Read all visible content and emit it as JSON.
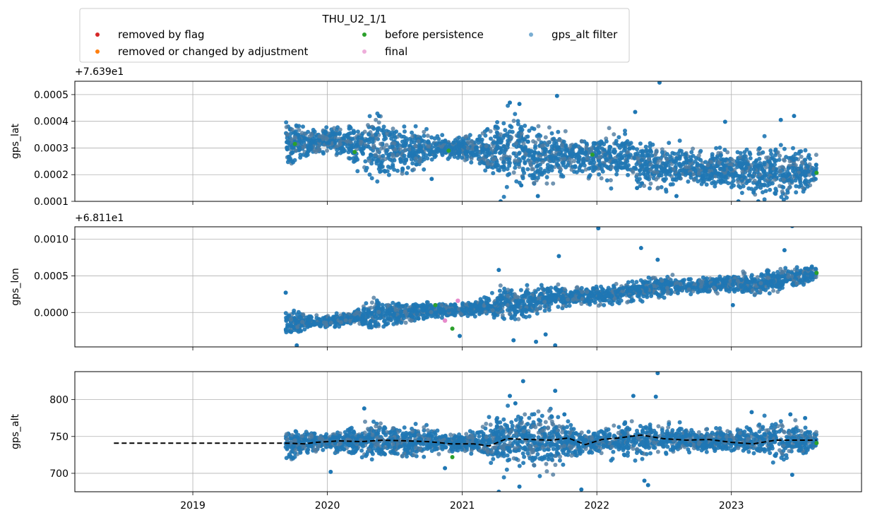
{
  "legend": {
    "title": "THU_U2_1/1",
    "entries": [
      {
        "label": "removed by flag",
        "color": "#d62728"
      },
      {
        "label": "removed or changed by adjustment",
        "color": "#ff7f0e"
      },
      {
        "label": "before persistence",
        "color": "#2ca02c"
      },
      {
        "label": "final",
        "color": "#e377c2"
      },
      {
        "label": "gps_alt filter",
        "color": "#1f77b4"
      }
    ]
  },
  "chart_data": [
    {
      "type": "scatter",
      "ylabel": "gps_lat",
      "offset_text": "+7.639e1",
      "xlim": [
        "2018-02-15",
        "2023-12-20"
      ],
      "ylim": [
        0.0001,
        0.00055
      ],
      "yticks": [
        0.0001,
        0.0002,
        0.0003,
        0.0004,
        0.0005
      ],
      "ytick_labels": [
        "0.0001",
        "0.0002",
        "0.0003",
        "0.0004",
        "0.0005"
      ],
      "grid": true,
      "trend": [
        [
          "2019-09-10",
          0.00033
        ],
        [
          "2019-11-15",
          0.00032
        ],
        [
          "2020-01-15",
          0.00033
        ],
        [
          "2020-03-15",
          0.00031
        ],
        [
          "2020-05-15",
          0.00031
        ],
        [
          "2020-07-15",
          0.00029
        ],
        [
          "2020-09-15",
          0.00029
        ],
        [
          "2020-11-15",
          0.0003
        ],
        [
          "2021-01-15",
          0.0003
        ],
        [
          "2021-03-15",
          0.00029
        ],
        [
          "2021-05-15",
          0.0003
        ],
        [
          "2021-07-15",
          0.00027
        ],
        [
          "2021-09-15",
          0.00028
        ],
        [
          "2021-11-15",
          0.00027
        ],
        [
          "2022-01-15",
          0.00026
        ],
        [
          "2022-03-15",
          0.00027
        ],
        [
          "2022-05-15",
          0.00024
        ],
        [
          "2022-07-15",
          0.00023
        ],
        [
          "2022-09-15",
          0.00023
        ],
        [
          "2022-11-15",
          0.00022
        ],
        [
          "2023-01-15",
          0.00022
        ],
        [
          "2023-03-15",
          0.00021
        ],
        [
          "2023-05-15",
          0.00021
        ],
        [
          "2023-07-15",
          0.00021
        ],
        [
          "2023-08-20",
          0.00021
        ]
      ],
      "spread": [
        [
          "2019-09-10",
          4e-05
        ],
        [
          "2019-12-01",
          2e-05
        ],
        [
          "2020-03-01",
          3e-05
        ],
        [
          "2020-05-15",
          6e-05
        ],
        [
          "2020-08-01",
          4e-05
        ],
        [
          "2020-11-01",
          2e-05
        ],
        [
          "2021-02-01",
          2e-05
        ],
        [
          "2021-05-01",
          6e-05
        ],
        [
          "2021-08-01",
          5e-05
        ],
        [
          "2021-11-01",
          3e-05
        ],
        [
          "2022-03-01",
          4e-05
        ],
        [
          "2022-06-01",
          4e-05
        ],
        [
          "2022-09-01",
          3e-05
        ],
        [
          "2023-01-01",
          3e-05
        ],
        [
          "2023-05-01",
          5e-05
        ],
        [
          "2023-08-20",
          3e-05
        ]
      ],
      "outliers": [
        [
          "2022-06-20",
          0.000545
        ],
        [
          "2021-09-15",
          0.000495
        ],
        [
          "2021-05-10",
          0.00047
        ],
        [
          "2021-06-05",
          0.000465
        ],
        [
          "2022-04-15",
          0.000435
        ],
        [
          "2023-06-20",
          0.00042
        ],
        [
          "2020-05-20",
          0.00042
        ],
        [
          "2023-05-15",
          0.000405
        ],
        [
          "2022-12-15",
          0.000398
        ],
        [
          "2021-04-01",
          0.00038
        ],
        [
          "2020-10-10",
          0.000184
        ],
        [
          "2021-06-10",
          0.00016
        ],
        [
          "2022-04-20",
          0.00015
        ],
        [
          "2021-07-25",
          0.00012
        ],
        [
          "2021-04-15",
          0.0001
        ],
        [
          "2022-08-05",
          0.00012
        ],
        [
          "2023-01-20",
          0.0001
        ],
        [
          "2023-03-15",
          0.0001
        ]
      ],
      "green_points": [
        [
          "2019-10-05",
          0.000315
        ],
        [
          "2020-03-15",
          0.000285
        ],
        [
          "2020-11-25",
          0.00029
        ],
        [
          "2021-12-20",
          0.000275
        ],
        [
          "2023-08-20",
          0.000207
        ]
      ],
      "pink_points": []
    },
    {
      "type": "scatter",
      "ylabel": "gps_lon",
      "offset_text": "+6.811e1",
      "xlim": [
        "2018-02-15",
        "2023-12-20"
      ],
      "ylim": [
        -0.00047,
        0.00117
      ],
      "yticks": [
        0.0,
        0.0005,
        0.001
      ],
      "ytick_labels": [
        "0.0000",
        "0.0005",
        "0.0010"
      ],
      "grid": true,
      "trend": [
        [
          "2019-09-10",
          -0.00015
        ],
        [
          "2019-11-15",
          -0.00013
        ],
        [
          "2020-01-15",
          -0.00012
        ],
        [
          "2020-03-15",
          -7e-05
        ],
        [
          "2020-05-15",
          -3e-05
        ],
        [
          "2020-07-15",
          0.0
        ],
        [
          "2020-09-15",
          2e-05
        ],
        [
          "2020-11-15",
          3e-05
        ],
        [
          "2021-01-15",
          5e-05
        ],
        [
          "2021-03-15",
          0.0001
        ],
        [
          "2021-05-15",
          0.00013
        ],
        [
          "2021-07-15",
          0.00016
        ],
        [
          "2021-09-15",
          0.0002
        ],
        [
          "2021-11-15",
          0.00022
        ],
        [
          "2022-01-15",
          0.00024
        ],
        [
          "2022-03-15",
          0.00027
        ],
        [
          "2022-05-15",
          0.00033
        ],
        [
          "2022-07-15",
          0.00035
        ],
        [
          "2022-09-15",
          0.00037
        ],
        [
          "2022-11-15",
          0.00038
        ],
        [
          "2023-01-15",
          0.0004
        ],
        [
          "2023-03-15",
          0.0004
        ],
        [
          "2023-05-15",
          0.00046
        ],
        [
          "2023-07-15",
          0.0005
        ],
        [
          "2023-08-20",
          0.00054
        ]
      ],
      "spread": [
        [
          "2019-09-10",
          8e-05
        ],
        [
          "2019-12-01",
          3e-05
        ],
        [
          "2020-03-01",
          4e-05
        ],
        [
          "2020-05-15",
          0.0001
        ],
        [
          "2020-08-01",
          7e-05
        ],
        [
          "2020-11-01",
          4e-05
        ],
        [
          "2021-02-01",
          4e-05
        ],
        [
          "2021-05-01",
          0.0001
        ],
        [
          "2021-08-01",
          9e-05
        ],
        [
          "2021-11-01",
          5e-05
        ],
        [
          "2022-03-01",
          6e-05
        ],
        [
          "2022-06-01",
          7e-05
        ],
        [
          "2022-09-01",
          5e-05
        ],
        [
          "2023-01-01",
          5e-05
        ],
        [
          "2023-05-01",
          8e-05
        ],
        [
          "2023-08-20",
          4e-05
        ]
      ],
      "outliers": [
        [
          "2019-09-10",
          0.00027
        ],
        [
          "2022-01-05",
          0.00115
        ],
        [
          "2023-06-15",
          0.00118
        ],
        [
          "2022-05-01",
          0.00088
        ],
        [
          "2022-06-15",
          0.00072
        ],
        [
          "2023-05-25",
          0.00085
        ],
        [
          "2021-09-20",
          0.00077
        ],
        [
          "2021-04-10",
          0.00058
        ],
        [
          "2019-10-10",
          -0.00045
        ],
        [
          "2021-09-10",
          -0.00045
        ],
        [
          "2021-07-20",
          -0.0004
        ],
        [
          "2021-08-15",
          -0.0003
        ],
        [
          "2021-05-20",
          -0.00038
        ],
        [
          "2020-12-25",
          -0.00032
        ],
        [
          "2023-01-05",
          0.0001
        ]
      ],
      "green_points": [
        [
          "2020-12-05",
          -0.00022
        ],
        [
          "2020-10-20",
          0.0001
        ],
        [
          "2023-08-20",
          0.00054
        ]
      ],
      "pink_points": [
        [
          "2020-11-15",
          -0.00011
        ],
        [
          "2020-12-20",
          0.00016
        ]
      ]
    },
    {
      "type": "scatter",
      "ylabel": "gps_alt",
      "offset_text": "",
      "xlim": [
        "2018-02-15",
        "2023-12-20"
      ],
      "ylim": [
        675,
        838
      ],
      "yticks": [
        700,
        750,
        800
      ],
      "ytick_labels": [
        "700",
        "750",
        "800"
      ],
      "xticks": [
        "2019-01-01",
        "2020-01-01",
        "2021-01-01",
        "2022-01-01",
        "2023-01-01"
      ],
      "xtick_labels": [
        "2019",
        "2020",
        "2021",
        "2022",
        "2023"
      ],
      "grid": true,
      "filter_line": [
        [
          "2018-06-01",
          741
        ],
        [
          "2019-09-10",
          741
        ],
        [
          "2019-11-01",
          740
        ],
        [
          "2019-12-01",
          742
        ],
        [
          "2020-02-01",
          744
        ],
        [
          "2020-04-01",
          743
        ],
        [
          "2020-06-01",
          745
        ],
        [
          "2020-08-01",
          744
        ],
        [
          "2020-10-01",
          743
        ],
        [
          "2020-12-01",
          740
        ],
        [
          "2021-02-01",
          740
        ],
        [
          "2021-03-15",
          737
        ],
        [
          "2021-05-01",
          747
        ],
        [
          "2021-07-01",
          746
        ],
        [
          "2021-09-01",
          745
        ],
        [
          "2021-10-15",
          748
        ],
        [
          "2021-12-01",
          739
        ],
        [
          "2022-01-15",
          746
        ],
        [
          "2022-03-01",
          748
        ],
        [
          "2022-05-01",
          752
        ],
        [
          "2022-07-01",
          747
        ],
        [
          "2022-09-01",
          745
        ],
        [
          "2022-11-01",
          746
        ],
        [
          "2023-01-01",
          742
        ],
        [
          "2023-03-01",
          740
        ],
        [
          "2023-05-01",
          745
        ],
        [
          "2023-07-01",
          745
        ],
        [
          "2023-08-20",
          745
        ]
      ],
      "trend": [
        [
          "2019-09-10",
          741
        ],
        [
          "2020-01-01",
          742
        ],
        [
          "2020-06-01",
          745
        ],
        [
          "2020-12-01",
          741
        ],
        [
          "2021-06-01",
          747
        ],
        [
          "2021-12-01",
          742
        ],
        [
          "2022-06-01",
          748
        ],
        [
          "2022-12-01",
          744
        ],
        [
          "2023-06-01",
          745
        ],
        [
          "2023-08-20",
          743
        ]
      ],
      "spread": [
        [
          "2019-09-10",
          10
        ],
        [
          "2020-01-01",
          5
        ],
        [
          "2020-05-15",
          12
        ],
        [
          "2020-10-01",
          8
        ],
        [
          "2021-01-15",
          5
        ],
        [
          "2021-05-01",
          17
        ],
        [
          "2021-09-01",
          18
        ],
        [
          "2021-12-01",
          6
        ],
        [
          "2022-04-01",
          11
        ],
        [
          "2022-07-01",
          8
        ],
        [
          "2023-01-01",
          6
        ],
        [
          "2023-05-01",
          13
        ],
        [
          "2023-08-20",
          6
        ]
      ],
      "outliers": [
        [
          "2021-06-15",
          825
        ],
        [
          "2021-09-10",
          812
        ],
        [
          "2022-06-15",
          836
        ],
        [
          "2021-05-10",
          805
        ],
        [
          "2022-04-10",
          805
        ],
        [
          "2022-06-10",
          804
        ],
        [
          "2020-04-10",
          788
        ],
        [
          "2023-06-10",
          780
        ],
        [
          "2021-05-25",
          795
        ],
        [
          "2021-10-05",
          780
        ],
        [
          "2021-04-10",
          675
        ],
        [
          "2021-06-05",
          682
        ],
        [
          "2021-11-20",
          678
        ],
        [
          "2022-05-10",
          690
        ],
        [
          "2022-05-20",
          684
        ],
        [
          "2020-01-10",
          702
        ],
        [
          "2023-06-15",
          698
        ],
        [
          "2020-11-15",
          707
        ],
        [
          "2023-02-25",
          783
        ],
        [
          "2023-07-20",
          775
        ]
      ],
      "green_points": [
        [
          "2020-12-05",
          722
        ],
        [
          "2023-08-20",
          741
        ]
      ],
      "pink_points": []
    }
  ]
}
